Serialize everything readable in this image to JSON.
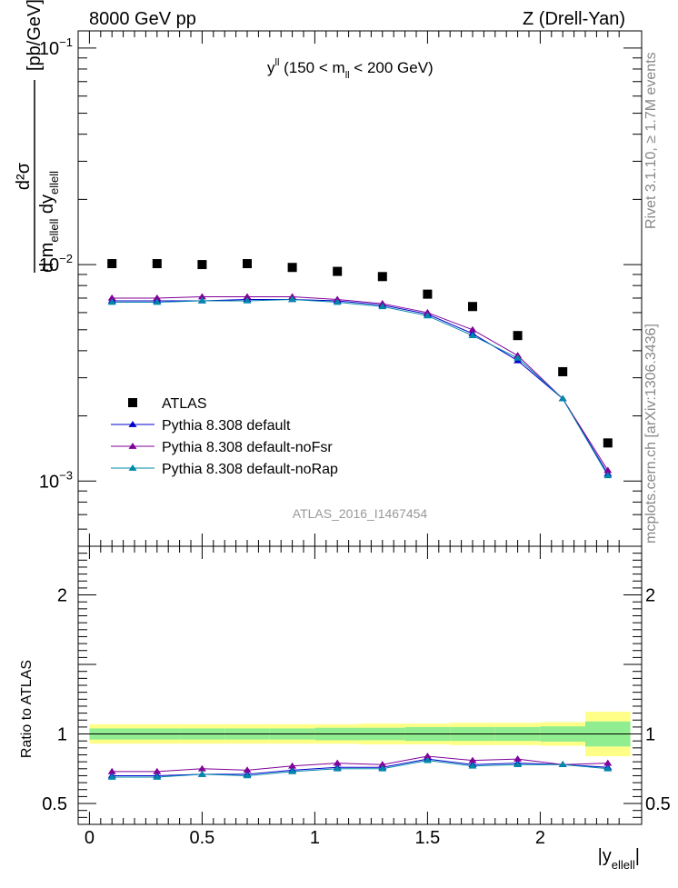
{
  "header": {
    "left": "8000 GeV pp",
    "right": "Z (Drell-Yan)"
  },
  "side_labels": {
    "rivet": "Rivet 3.1.10, ≥ 1.7M events",
    "mcplots": "mcplots.cern.ch [arXiv:1306.3436]"
  },
  "chart_data": [
    {
      "type": "scatter",
      "title": "yᴸᴸ (150 < mᴸᴸ < 200 GeV)",
      "title_parts": {
        "main": "y",
        "sup": "ll",
        "rest": " (150 < m",
        "sub": "ll",
        "tail": " < 200 GeV)"
      },
      "ylabel": "d²σ / d m_ellell dy_ellell [pb/GeV]",
      "ylabel_parts": {
        "num": "d²σ",
        "den_a": "d m",
        "den_sub1": "ellell",
        "den_b": " dy",
        "den_sub2": "ellell",
        "unit": "[pb/GeV]"
      },
      "yscale": "log",
      "ylim": [
        0.0005,
        0.12
      ],
      "xlim": [
        -0.05,
        2.45
      ],
      "ytick_labels": [
        "10⁻³",
        "10⁻²",
        "10⁻¹"
      ],
      "ytick_parts": [
        {
          "base": "10",
          "exp": "−3",
          "value": 0.001
        },
        {
          "base": "10",
          "exp": "−2",
          "value": 0.01
        },
        {
          "base": "10",
          "exp": "−1",
          "value": 0.1
        }
      ],
      "watermark": "ATLAS_2016_I1467454",
      "legend_position": "bottom-left",
      "x": [
        0.1,
        0.3,
        0.5,
        0.7,
        0.9,
        1.1,
        1.3,
        1.5,
        1.7,
        1.9,
        2.1,
        2.3
      ],
      "series": [
        {
          "name": "ATLAS",
          "color": "#000000",
          "marker": "square",
          "values": [
            0.0101,
            0.0101,
            0.01,
            0.0101,
            0.0097,
            0.0093,
            0.0088,
            0.0073,
            0.0064,
            0.0047,
            0.0032,
            0.0015
          ]
        },
        {
          "name": "Pythia 8.308 default",
          "color": "#0000cc",
          "marker": "triangle",
          "values": [
            0.0068,
            0.0068,
            0.0068,
            0.0069,
            0.0069,
            0.0068,
            0.0065,
            0.0059,
            0.0048,
            0.0036,
            0.0024,
            0.00108
          ]
        },
        {
          "name": "Pythia 8.308 default-noFsr",
          "color": "#800099",
          "marker": "triangle",
          "values": [
            0.007,
            0.007,
            0.0071,
            0.0071,
            0.0071,
            0.0069,
            0.0066,
            0.006,
            0.005,
            0.0038,
            0.0024,
            0.00112
          ]
        },
        {
          "name": "Pythia 8.308 default-noRap",
          "color": "#0088aa",
          "marker": "triangle",
          "values": [
            0.0067,
            0.0067,
            0.0068,
            0.0068,
            0.0069,
            0.0067,
            0.0064,
            0.0058,
            0.0047,
            0.0037,
            0.0024,
            0.00106
          ]
        }
      ]
    },
    {
      "type": "line",
      "ylabel": "Ratio to ATLAS",
      "xlabel": "|y_ellell|",
      "xlabel_parts": {
        "main": "|y",
        "sub": "ellell",
        "close": "|"
      },
      "ylim": [
        0.35,
        2.35
      ],
      "xlim": [
        -0.05,
        2.45
      ],
      "ytick_labels": [
        "0.5",
        "1",
        "2"
      ],
      "yticks": [
        0.5,
        1,
        2
      ],
      "xtick_labels": [
        "0",
        "0.5",
        "1",
        "1.5",
        "2"
      ],
      "xticks": [
        0,
        0.5,
        1,
        1.5,
        2
      ],
      "bands": {
        "edges": [
          0,
          0.2,
          0.4,
          0.6,
          0.8,
          1.0,
          1.2,
          1.4,
          1.6,
          1.8,
          2.0,
          2.2,
          2.4
        ],
        "inner": [
          0.04,
          0.04,
          0.04,
          0.04,
          0.04,
          0.045,
          0.045,
          0.05,
          0.05,
          0.05,
          0.055,
          0.09
        ],
        "outer": [
          0.07,
          0.07,
          0.07,
          0.07,
          0.07,
          0.07,
          0.075,
          0.075,
          0.08,
          0.08,
          0.085,
          0.16
        ],
        "inner_color": "#90ee90",
        "outer_color": "#ffff88"
      },
      "x": [
        0.1,
        0.3,
        0.5,
        0.7,
        0.9,
        1.1,
        1.3,
        1.5,
        1.7,
        1.9,
        2.1,
        2.3
      ],
      "series": [
        {
          "name": "Pythia 8.308 default",
          "color": "#0000cc",
          "values": [
            0.7,
            0.7,
            0.71,
            0.71,
            0.74,
            0.76,
            0.76,
            0.82,
            0.78,
            0.79,
            0.78,
            0.76
          ]
        },
        {
          "name": "Pythia 8.308 default-noFsr",
          "color": "#800099",
          "values": [
            0.73,
            0.73,
            0.75,
            0.74,
            0.77,
            0.79,
            0.78,
            0.84,
            0.81,
            0.82,
            0.78,
            0.79
          ]
        },
        {
          "name": "Pythia 8.308 default-noRap",
          "color": "#0088aa",
          "values": [
            0.69,
            0.69,
            0.71,
            0.7,
            0.73,
            0.75,
            0.75,
            0.81,
            0.77,
            0.78,
            0.78,
            0.75
          ]
        }
      ]
    }
  ]
}
